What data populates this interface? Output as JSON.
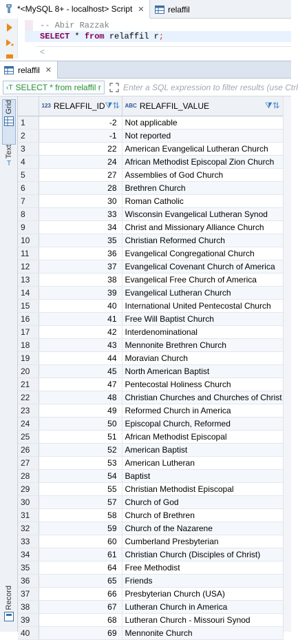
{
  "editor_tabs": [
    {
      "label": "*<MySQL 8+ - localhost> Script",
      "icon": "sql-script-icon"
    },
    {
      "label": "relaffil",
      "icon": "table-icon"
    }
  ],
  "editor": {
    "comment": "-- Abir Razzak",
    "kw_select": "SELECT",
    "star": " * ",
    "kw_from": "from",
    "table_ref": " relaffil r",
    "semicolon": ";"
  },
  "scroll_left_glyph": "<",
  "results_tab": {
    "label": "relaffil"
  },
  "filter": {
    "sql_preview": "SELECT * from relaffil r",
    "placeholder": "Enter a SQL expression to filter results (use Ctrl"
  },
  "side_tabs": [
    "Grid",
    "Text",
    "Record"
  ],
  "columns": [
    {
      "type_badge": "123",
      "label": "RELAFFIL_ID"
    },
    {
      "type_badge": "ABC",
      "label": "RELAFFIL_VALUE"
    }
  ],
  "rows": [
    {
      "n": "1",
      "id": "-2",
      "value": "Not applicable"
    },
    {
      "n": "2",
      "id": "-1",
      "value": "Not reported"
    },
    {
      "n": "3",
      "id": "22",
      "value": "American Evangelical Lutheran Church"
    },
    {
      "n": "4",
      "id": "24",
      "value": "African Methodist Episcopal Zion Church"
    },
    {
      "n": "5",
      "id": "27",
      "value": "Assemblies of God Church"
    },
    {
      "n": "6",
      "id": "28",
      "value": "Brethren Church"
    },
    {
      "n": "7",
      "id": "30",
      "value": "Roman Catholic"
    },
    {
      "n": "8",
      "id": "33",
      "value": "Wisconsin Evangelical Lutheran Synod"
    },
    {
      "n": "9",
      "id": "34",
      "value": "Christ and Missionary Alliance Church"
    },
    {
      "n": "10",
      "id": "35",
      "value": "Christian Reformed Church"
    },
    {
      "n": "11",
      "id": "36",
      "value": "Evangelical Congregational Church"
    },
    {
      "n": "12",
      "id": "37",
      "value": "Evangelical Covenant Church of America"
    },
    {
      "n": "13",
      "id": "38",
      "value": "Evangelical Free Church of America"
    },
    {
      "n": "14",
      "id": "39",
      "value": "Evangelical Lutheran Church"
    },
    {
      "n": "15",
      "id": "40",
      "value": "International United Pentecostal Church"
    },
    {
      "n": "16",
      "id": "41",
      "value": "Free Will Baptist Church"
    },
    {
      "n": "17",
      "id": "42",
      "value": "Interdenominational"
    },
    {
      "n": "18",
      "id": "43",
      "value": "Mennonite Brethren Church"
    },
    {
      "n": "19",
      "id": "44",
      "value": "Moravian Church"
    },
    {
      "n": "20",
      "id": "45",
      "value": "North American Baptist"
    },
    {
      "n": "21",
      "id": "47",
      "value": "Pentecostal Holiness Church"
    },
    {
      "n": "22",
      "id": "48",
      "value": "Christian Churches and Churches of Christ"
    },
    {
      "n": "23",
      "id": "49",
      "value": "Reformed Church in America"
    },
    {
      "n": "24",
      "id": "50",
      "value": "Episcopal Church, Reformed"
    },
    {
      "n": "25",
      "id": "51",
      "value": "African Methodist Episcopal"
    },
    {
      "n": "26",
      "id": "52",
      "value": "American Baptist"
    },
    {
      "n": "27",
      "id": "53",
      "value": "American Lutheran"
    },
    {
      "n": "28",
      "id": "54",
      "value": "Baptist"
    },
    {
      "n": "29",
      "id": "55",
      "value": "Christian Methodist Episcopal"
    },
    {
      "n": "30",
      "id": "57",
      "value": "Church of God"
    },
    {
      "n": "31",
      "id": "58",
      "value": "Church of Brethren"
    },
    {
      "n": "32",
      "id": "59",
      "value": "Church of the Nazarene"
    },
    {
      "n": "33",
      "id": "60",
      "value": "Cumberland Presbyterian"
    },
    {
      "n": "34",
      "id": "61",
      "value": "Christian Church (Disciples of Christ)"
    },
    {
      "n": "35",
      "id": "64",
      "value": "Free Methodist"
    },
    {
      "n": "36",
      "id": "65",
      "value": "Friends"
    },
    {
      "n": "37",
      "id": "66",
      "value": "Presbyterian Church (USA)"
    },
    {
      "n": "38",
      "id": "67",
      "value": "Lutheran Church in America"
    },
    {
      "n": "39",
      "id": "68",
      "value": "Lutheran Church - Missouri Synod"
    },
    {
      "n": "40",
      "id": "69",
      "value": "Mennonite Church"
    }
  ]
}
